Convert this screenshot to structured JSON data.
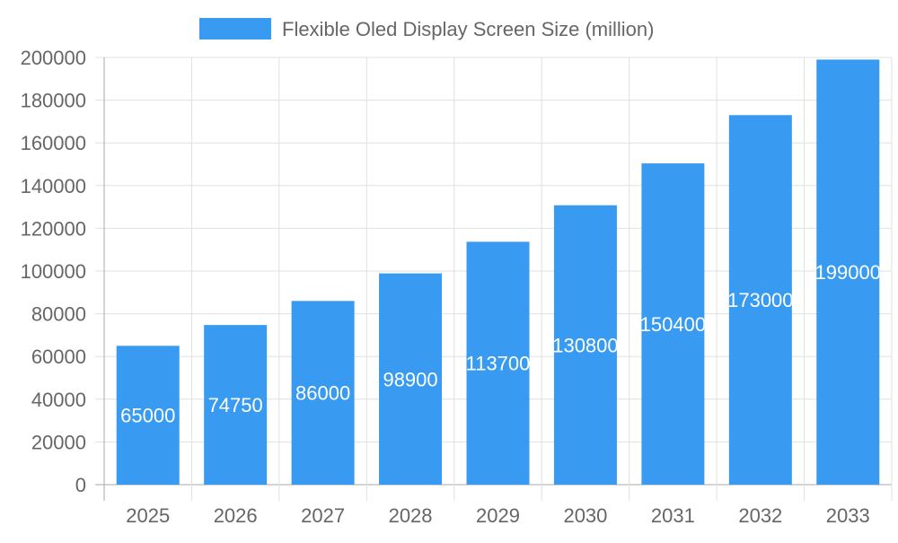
{
  "chart_data": {
    "type": "bar",
    "categories": [
      "2025",
      "2026",
      "2027",
      "2028",
      "2029",
      "2030",
      "2031",
      "2032",
      "2033"
    ],
    "series": [
      {
        "name": "Flexible Oled Display Screen Size (million)",
        "values": [
          65000,
          74750,
          86000,
          98900,
          113700,
          130800,
          150400,
          173000,
          199000
        ]
      }
    ],
    "ylim": [
      0,
      200000
    ],
    "yticks": [
      0,
      20000,
      40000,
      60000,
      80000,
      100000,
      120000,
      140000,
      160000,
      180000,
      200000
    ],
    "grid": true,
    "legend": "top",
    "data_labels": true,
    "colors": {
      "bar": "#389bf1",
      "label": "#ffffff",
      "grid": "#e0e0e0",
      "axis": "#aaaaaa",
      "text": "#666666"
    }
  }
}
